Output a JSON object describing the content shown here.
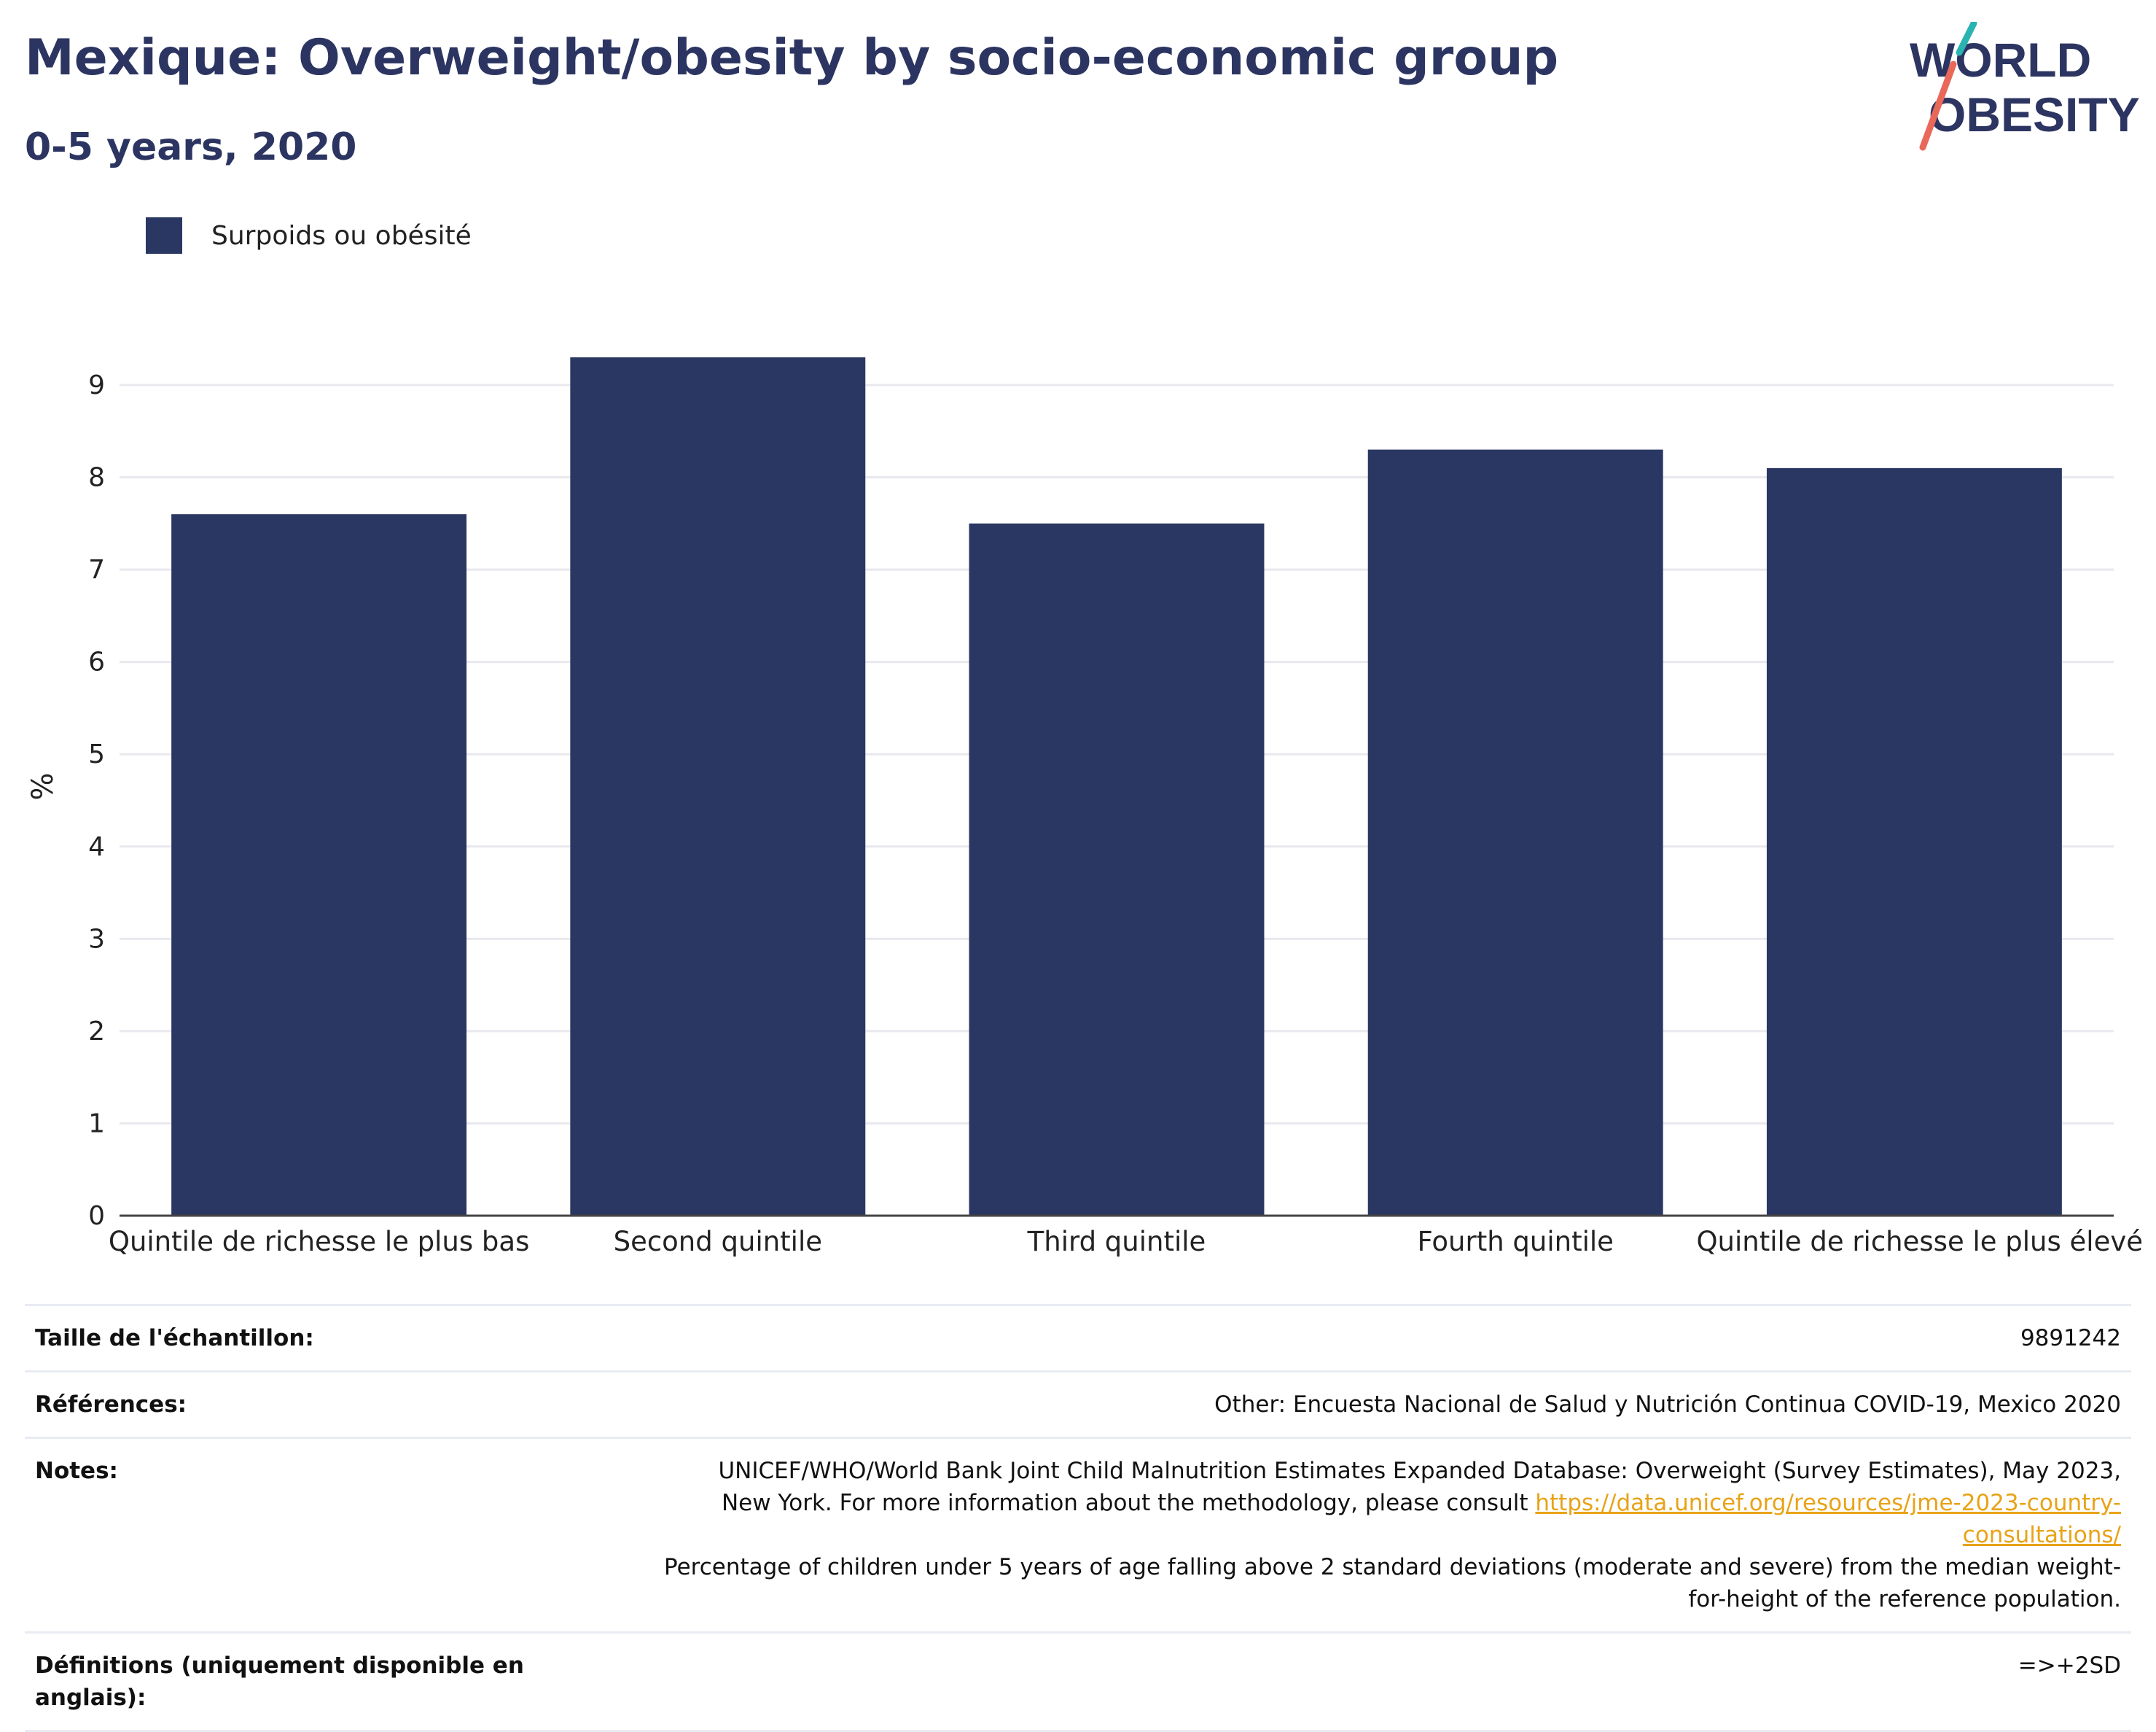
{
  "header": {
    "title": "Mexique: Overweight/obesity by socio-economic group",
    "subtitle": "0-5 years, 2020"
  },
  "logo": {
    "line1": "WORLD",
    "line2": "OBESITY"
  },
  "colors": {
    "bar": "#2a3762",
    "title": "#2c3561",
    "link": "#e8a317",
    "logo_teal": "#2bb3b1",
    "logo_coral": "#e8685a"
  },
  "chart_data": {
    "type": "bar",
    "categories": [
      "Quintile de richesse le plus bas",
      "Second quintile",
      "Third quintile",
      "Fourth quintile",
      "Quintile de richesse le plus élevé"
    ],
    "series": [
      {
        "name": "Surpoids ou obésité",
        "values": [
          7.6,
          9.3,
          7.5,
          8.3,
          8.1
        ]
      }
    ],
    "ylabel": "%",
    "ylim": [
      0,
      9.3
    ],
    "yticks": [
      0,
      1,
      2,
      3,
      4,
      5,
      6,
      7,
      8,
      9
    ],
    "grid": true,
    "legend": "top-left"
  },
  "meta": {
    "sample_label": "Taille de l'échantillon:",
    "sample_value": "9891242",
    "references_label": "Références:",
    "references_value": "Other: Encuesta Nacional de Salud y Nutrición Continua COVID-19, Mexico 2020",
    "notes_label": "Notes:",
    "notes_text_1": "UNICEF/WHO/World Bank Joint Child Malnutrition Estimates Expanded Database: Overweight (Survey Estimates), May 2023, New York. For more information about the methodology, please consult ",
    "notes_link": "https://data.unicef.org/resources/jme-2023-country-consultations/",
    "notes_text_2": "Percentage of children under 5 years of age falling above 2 standard deviations (moderate and severe) from the median weight-for-height of the reference population.",
    "definitions_label": "Définitions (uniquement disponible en anglais):",
    "definitions_value": "=>+2SD"
  }
}
